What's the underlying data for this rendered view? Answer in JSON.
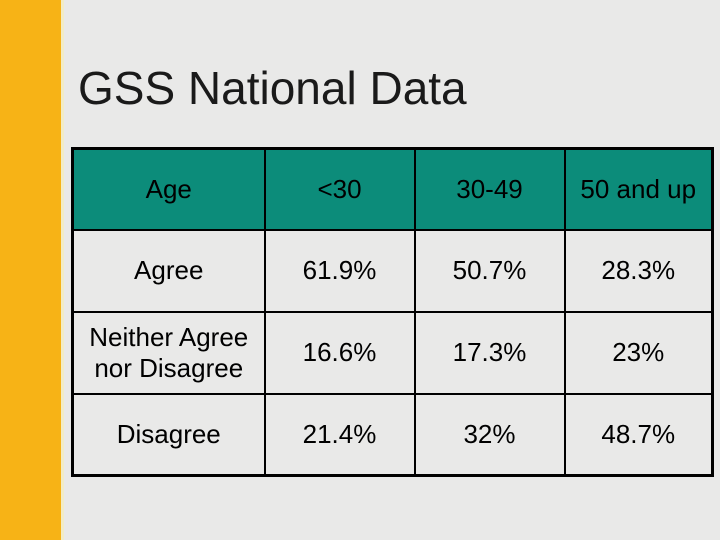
{
  "slide": {
    "title": "GSS National Data"
  },
  "table": {
    "headers": [
      "Age",
      "<30",
      "30-49",
      "50 and up"
    ],
    "rows": [
      [
        "Agree",
        "61.9%",
        "50.7%",
        "28.3%"
      ],
      [
        "Neither Agree nor Disagree",
        "16.6%",
        "17.3%",
        "23%"
      ],
      [
        "Disagree",
        "21.4%",
        "32%",
        "48.7%"
      ]
    ]
  },
  "chart_data": {
    "type": "table",
    "title": "GSS National Data",
    "categories": [
      "<30",
      "30-49",
      "50 and up"
    ],
    "series": [
      {
        "name": "Agree",
        "values": [
          61.9,
          50.7,
          28.3
        ]
      },
      {
        "name": "Neither Agree nor Disagree",
        "values": [
          16.6,
          17.3,
          23
        ]
      },
      {
        "name": "Disagree",
        "values": [
          21.4,
          32,
          48.7
        ]
      }
    ],
    "unit": "%"
  },
  "colors": {
    "accent_bar": "#F7B316",
    "accent_strip": "#F2ECC6",
    "header_fill": "#0C8C7A",
    "cell_fill": "#E9E9E8",
    "background": "#E9E9E8",
    "border": "#000000",
    "title_text": "#1A1A1A"
  }
}
